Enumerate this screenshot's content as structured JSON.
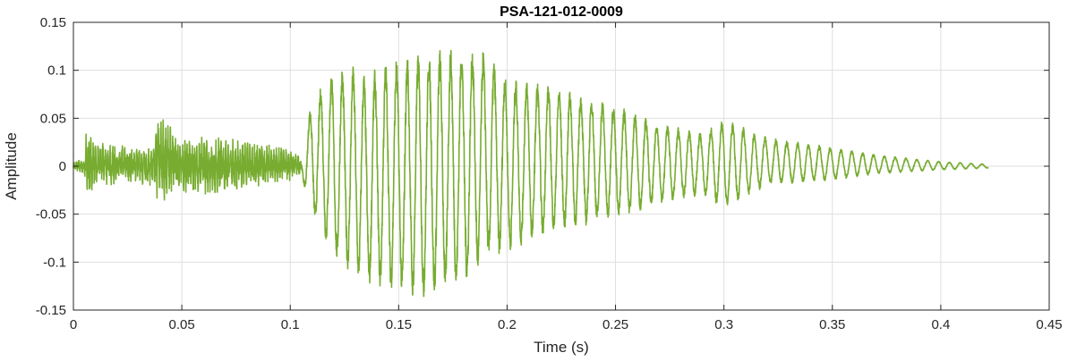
{
  "chart_data": {
    "type": "line",
    "title": "PSA-121-012-0009",
    "xlabel": "Time (s)",
    "ylabel": "Amplitude",
    "xlim": [
      0,
      0.45
    ],
    "ylim": [
      -0.15,
      0.15
    ],
    "x_ticks": [
      0,
      0.05,
      0.1,
      0.15,
      0.2,
      0.25,
      0.3,
      0.35,
      0.4,
      0.45
    ],
    "x_tick_labels": [
      "0",
      "0.05",
      "0.1",
      "0.15",
      "0.2",
      "0.25",
      "0.3",
      "0.35",
      "0.4",
      "0.45"
    ],
    "y_ticks": [
      -0.15,
      -0.1,
      -0.05,
      0,
      0.05,
      0.1,
      0.15
    ],
    "y_tick_labels": [
      "-0.15",
      "-0.1",
      "-0.05",
      "0",
      "0.05",
      "0.1",
      "0.15"
    ],
    "grid": true,
    "series": [
      {
        "color": "#77ac30",
        "x_start": 0,
        "x_end": 0.422,
        "envelope": {
          "t": [
            0,
            0.005,
            0.006,
            0.01,
            0.037,
            0.039,
            0.05,
            0.07,
            0.1,
            0.105,
            0.11,
            0.12,
            0.13,
            0.135,
            0.145,
            0.16,
            0.18,
            0.19,
            0.2,
            0.22,
            0.25,
            0.27,
            0.29,
            0.3,
            0.32,
            0.35,
            0.37,
            0.4,
            0.422
          ],
          "pos": [
            0.005,
            0.01,
            0.04,
            0.025,
            0.02,
            0.06,
            0.03,
            0.032,
            0.018,
            0.01,
            0.07,
            0.1,
            0.105,
            0.095,
            0.11,
            0.12,
            0.125,
            0.12,
            0.095,
            0.085,
            0.065,
            0.045,
            0.035,
            0.05,
            0.03,
            0.02,
            0.012,
            0.005,
            0.002
          ],
          "neg": [
            -0.005,
            -0.01,
            -0.038,
            -0.02,
            -0.02,
            -0.04,
            -0.03,
            -0.03,
            -0.015,
            -0.01,
            -0.05,
            -0.095,
            -0.115,
            -0.125,
            -0.13,
            -0.14,
            -0.125,
            -0.1,
            -0.09,
            -0.07,
            -0.055,
            -0.04,
            -0.03,
            -0.045,
            -0.02,
            -0.015,
            -0.008,
            -0.004,
            -0.002
          ]
        },
        "oscillation_hz": {
          "before_0.105s": 900,
          "after_0.105s": 200
        }
      }
    ]
  }
}
